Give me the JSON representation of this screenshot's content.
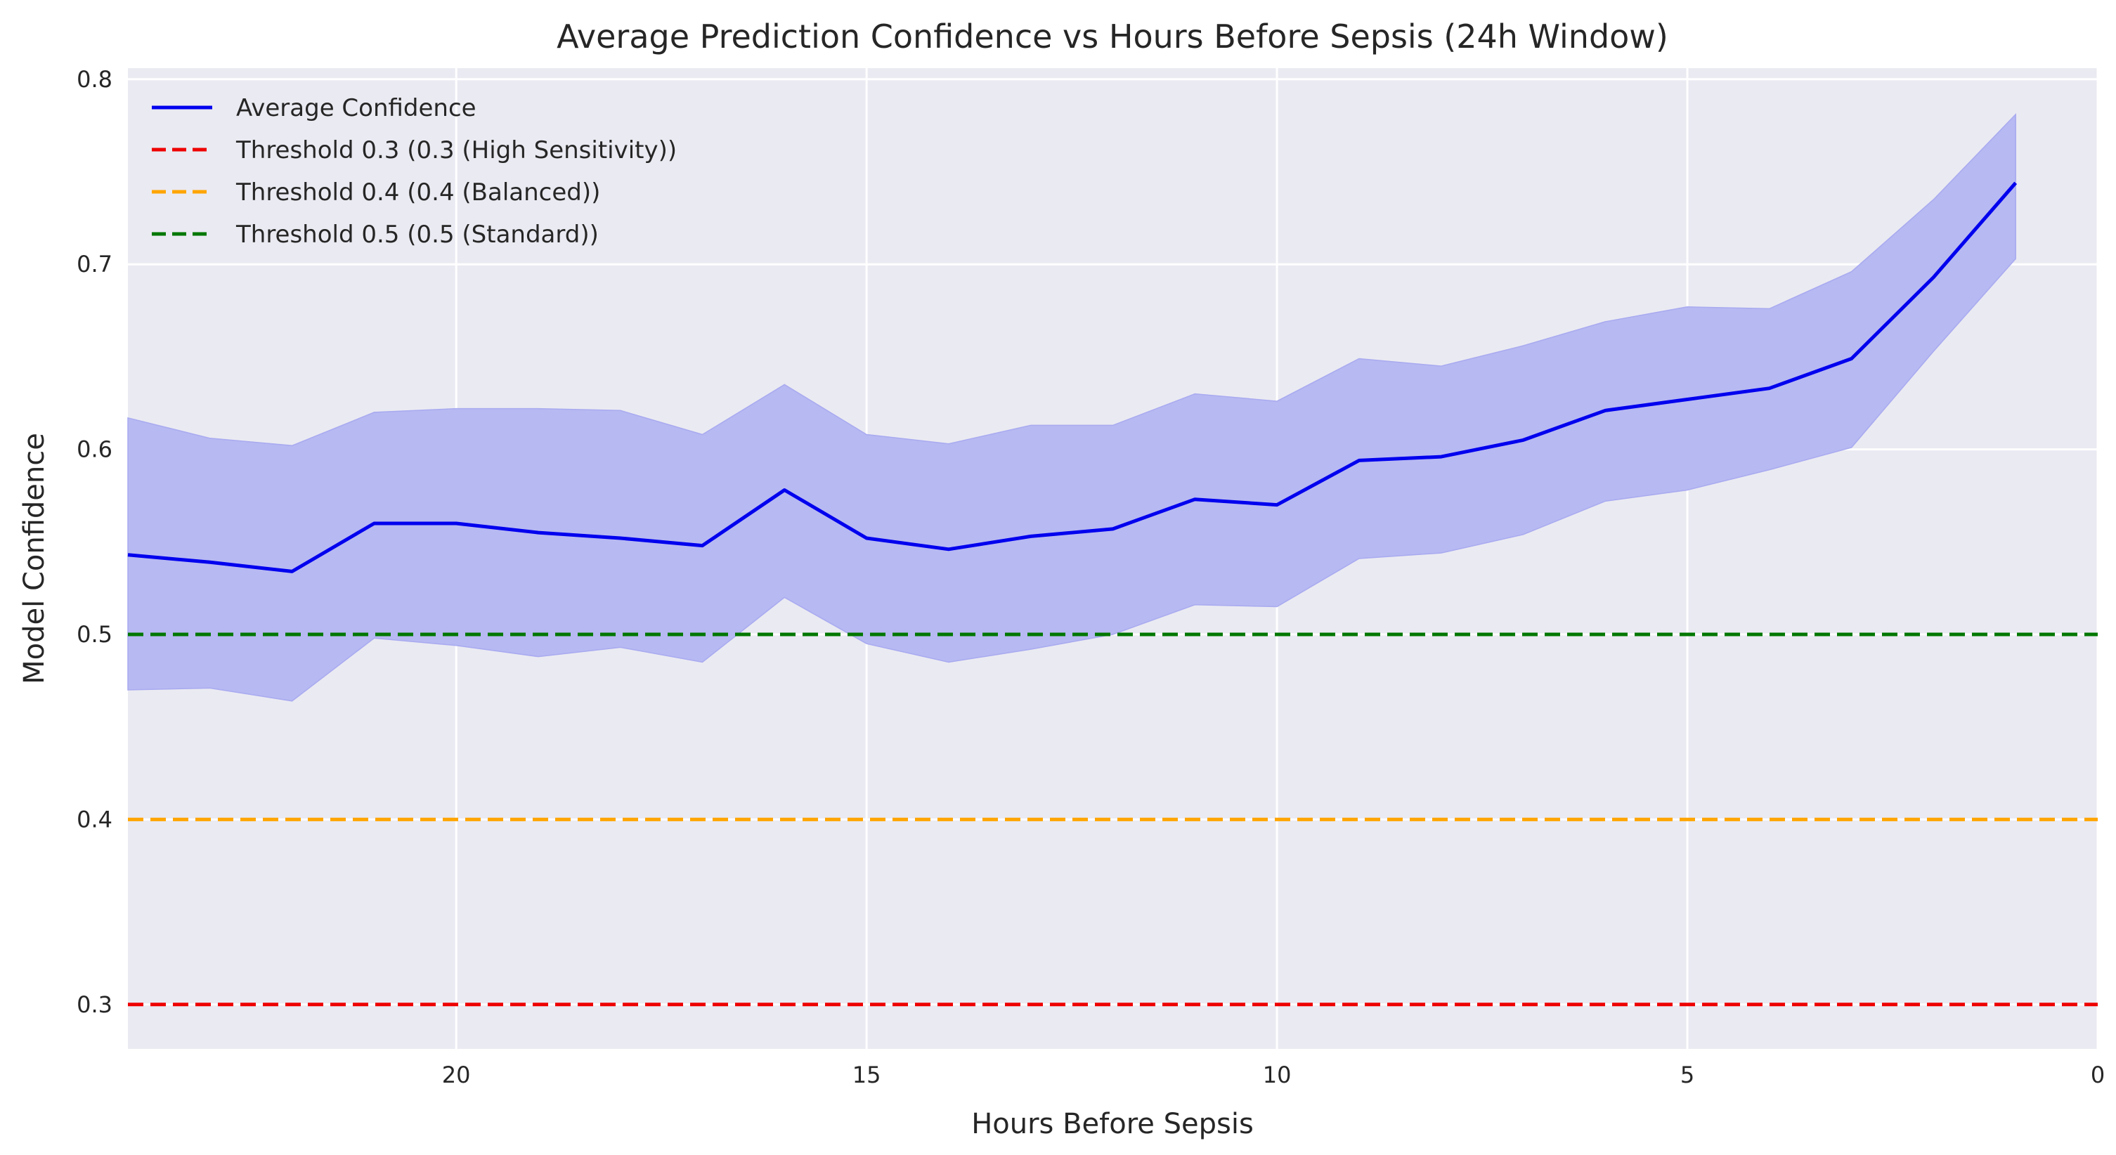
{
  "chart_data": {
    "type": "line",
    "title": "Average Prediction Confidence vs Hours Before Sepsis (24h Window)",
    "xlabel": "Hours Before Sepsis",
    "ylabel": "Model Confidence",
    "xlim": [
      24,
      0
    ],
    "ylim": [
      0.276,
      0.806
    ],
    "x_inverted": true,
    "xticks": [
      20,
      15,
      10,
      5,
      0
    ],
    "yticks": [
      0.3,
      0.4,
      0.5,
      0.6,
      0.7,
      0.8
    ],
    "grid": true,
    "legend_position": "top-left",
    "x": [
      24,
      23,
      22,
      21,
      20,
      19,
      18,
      17,
      16,
      15,
      14,
      13,
      12,
      11,
      10,
      9,
      8,
      7,
      6,
      5,
      4,
      3,
      2,
      1
    ],
    "series": [
      {
        "name": "Average Confidence",
        "color": "#0000ee",
        "style": "solid",
        "values": [
          0.543,
          0.539,
          0.534,
          0.56,
          0.56,
          0.555,
          0.552,
          0.548,
          0.578,
          0.552,
          0.546,
          0.553,
          0.557,
          0.573,
          0.57,
          0.594,
          0.596,
          0.605,
          0.621,
          0.627,
          0.633,
          0.649,
          0.693,
          0.744
        ],
        "band_lower": [
          0.47,
          0.471,
          0.464,
          0.498,
          0.494,
          0.488,
          0.493,
          0.485,
          0.52,
          0.495,
          0.485,
          0.492,
          0.5,
          0.516,
          0.515,
          0.541,
          0.544,
          0.554,
          0.572,
          0.578,
          0.589,
          0.601,
          0.653,
          0.703
        ],
        "band_upper": [
          0.617,
          0.606,
          0.602,
          0.62,
          0.622,
          0.622,
          0.621,
          0.608,
          0.635,
          0.608,
          0.603,
          0.613,
          0.613,
          0.63,
          0.626,
          0.649,
          0.645,
          0.656,
          0.669,
          0.677,
          0.676,
          0.696,
          0.735,
          0.781
        ]
      }
    ],
    "thresholds": [
      {
        "name": "Threshold 0.3 (0.3 (High Sensitivity))",
        "value": 0.3,
        "color": "#ee0000"
      },
      {
        "name": "Threshold 0.4 (0.4 (Balanced))",
        "value": 0.4,
        "color": "#ffa500"
      },
      {
        "name": "Threshold 0.5 (0.5 (Standard))",
        "value": 0.5,
        "color": "#007700"
      }
    ],
    "colors": {
      "background": "#eaeaf2",
      "grid": "#ffffff",
      "band": "#b7b9f2"
    }
  }
}
